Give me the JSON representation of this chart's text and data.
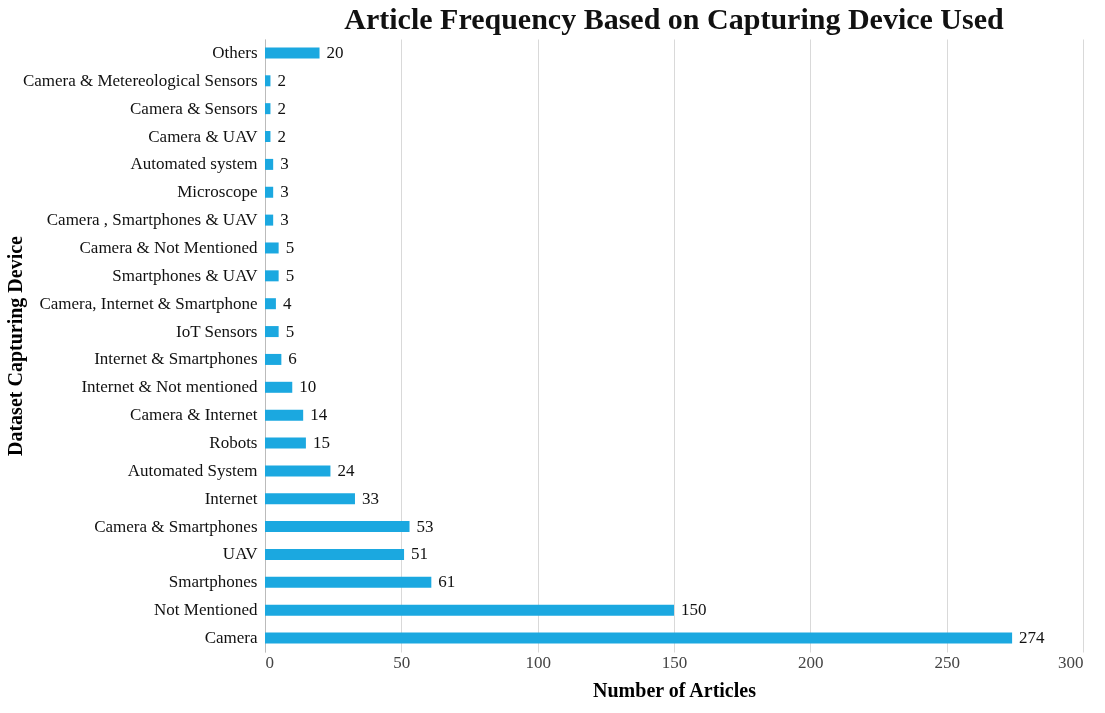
{
  "chart_data": {
    "type": "bar",
    "orientation": "horizontal",
    "title": "Article Frequency Based on Capturing Device Used",
    "xlabel": "Number of Articles",
    "ylabel": "Dataset Capturing Device",
    "categories": [
      "Others",
      "Camera & Metereological Sensors",
      "Camera & Sensors",
      "Camera & UAV",
      "Automated system",
      "Microscope",
      "Camera , Smartphones &  UAV",
      "Camera  & Not Mentioned",
      "Smartphones & UAV",
      "Camera, Internet & Smartphone",
      "IoT Sensors",
      "Internet & Smartphones",
      "Internet & Not mentioned",
      "Camera & Internet",
      "Robots",
      "Automated System",
      "Internet",
      "Camera &  Smartphones",
      "UAV",
      "Smartphones",
      "Not Mentioned",
      "Camera"
    ],
    "values": [
      20,
      2,
      2,
      2,
      3,
      3,
      3,
      5,
      5,
      4,
      5,
      6,
      10,
      14,
      15,
      24,
      33,
      53,
      51,
      61,
      150,
      274
    ],
    "color": "#1ba8e0",
    "xlim": [
      0,
      300
    ],
    "xticks": [
      0,
      50,
      100,
      150,
      200,
      250,
      300
    ],
    "grid": "x",
    "data_labels": true
  }
}
